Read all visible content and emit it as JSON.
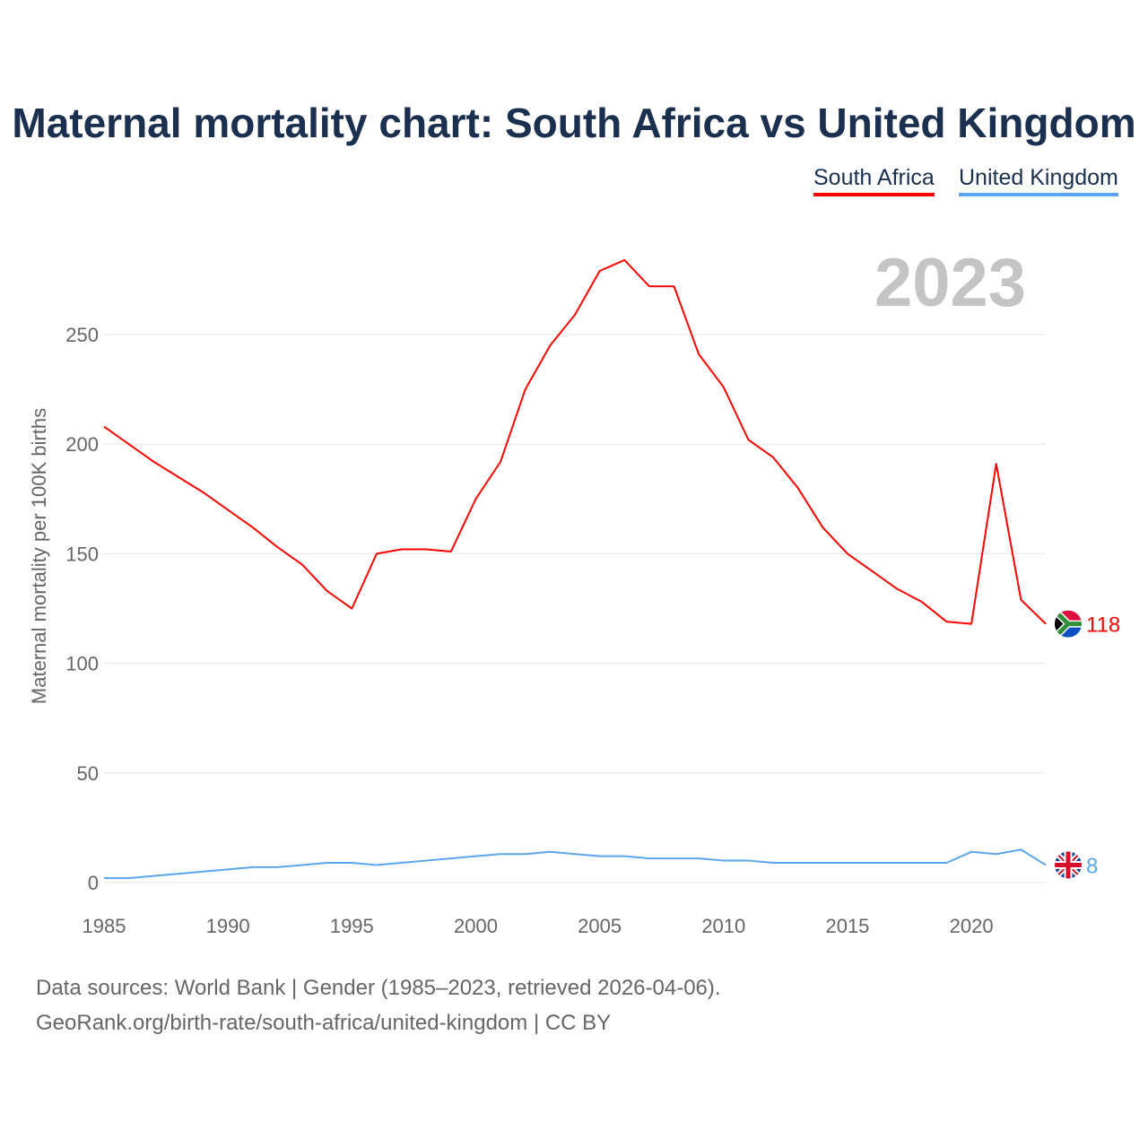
{
  "chart_data": {
    "type": "line",
    "title": "Maternal mortality chart: South Africa vs United Kingdom",
    "xlabel": "",
    "ylabel": "Maternal mortality per 100K births",
    "xlim": [
      1985,
      2023
    ],
    "ylim": [
      0,
      290
    ],
    "grid": true,
    "legend_placement": "top-right",
    "x_ticks": [
      "1985",
      "1990",
      "1995",
      "2000",
      "2005",
      "2010",
      "2015",
      "2020"
    ],
    "y_ticks": [
      "0",
      "50",
      "100",
      "150",
      "200",
      "250"
    ],
    "x": [
      1985,
      1986,
      1987,
      1988,
      1989,
      1990,
      1991,
      1992,
      1993,
      1994,
      1995,
      1996,
      1997,
      1998,
      1999,
      2000,
      2001,
      2002,
      2003,
      2004,
      2005,
      2006,
      2007,
      2008,
      2009,
      2010,
      2011,
      2012,
      2013,
      2014,
      2015,
      2016,
      2017,
      2018,
      2019,
      2020,
      2021,
      2022,
      2023
    ],
    "series": [
      {
        "name": "South Africa",
        "color": "#ff0000",
        "end_label": "118",
        "values": [
          208,
          200,
          192,
          185,
          178,
          170,
          162,
          153,
          145,
          133,
          125,
          150,
          152,
          152,
          151,
          175,
          192,
          225,
          245,
          259,
          279,
          284,
          272,
          272,
          241,
          226,
          202,
          194,
          180,
          162,
          150,
          142,
          134,
          128,
          119,
          118,
          191,
          129,
          118
        ]
      },
      {
        "name": "United Kingdom",
        "color": "#5aa5ee",
        "end_label": "8",
        "values": [
          2,
          2,
          3,
          4,
          5,
          6,
          7,
          7,
          8,
          9,
          9,
          8,
          9,
          10,
          11,
          12,
          13,
          13,
          14,
          13,
          12,
          12,
          11,
          11,
          11,
          10,
          10,
          9,
          9,
          9,
          9,
          9,
          9,
          9,
          9,
          14,
          13,
          15,
          8
        ]
      }
    ],
    "annotation": "2023"
  },
  "footer": {
    "line1": "Data sources: World Bank | Gender (1985–2023, retrieved 2026-04-06).",
    "line2": "GeoRank.org/birth-rate/south-africa/united-kingdom | CC BY"
  }
}
